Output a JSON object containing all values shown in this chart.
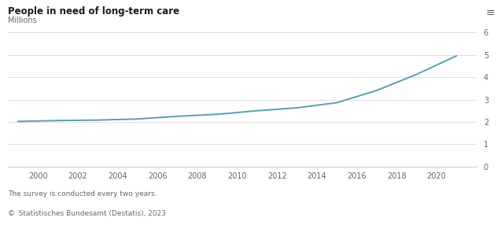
{
  "title": "People in need of long-term care",
  "subtitle": "Millions",
  "footnote": "The survey is conducted every two years.",
  "source": "©  Statistisches Bundesamt (Destatis), 2023",
  "years": [
    1999,
    2001,
    2003,
    2005,
    2007,
    2009,
    2011,
    2013,
    2015,
    2017,
    2019,
    2021
  ],
  "values": [
    2.02,
    2.06,
    2.08,
    2.13,
    2.25,
    2.34,
    2.5,
    2.63,
    2.86,
    3.41,
    4.13,
    4.96
  ],
  "line_color": "#5b9db5",
  "background_color": "#ffffff",
  "grid_color": "#d9d9d9",
  "text_color": "#1a1a1a",
  "footnote_color": "#666666",
  "ylim": [
    0,
    6
  ],
  "yticks": [
    0,
    1,
    2,
    3,
    4,
    5,
    6
  ],
  "xlim": [
    1998.5,
    2022.0
  ],
  "xticks": [
    2000,
    2002,
    2004,
    2006,
    2008,
    2010,
    2012,
    2014,
    2016,
    2018,
    2020
  ],
  "title_fontsize": 8.5,
  "subtitle_fontsize": 7,
  "tick_fontsize": 7,
  "footnote_fontsize": 6.5,
  "menu_icon": "≡",
  "line_width": 1.4
}
